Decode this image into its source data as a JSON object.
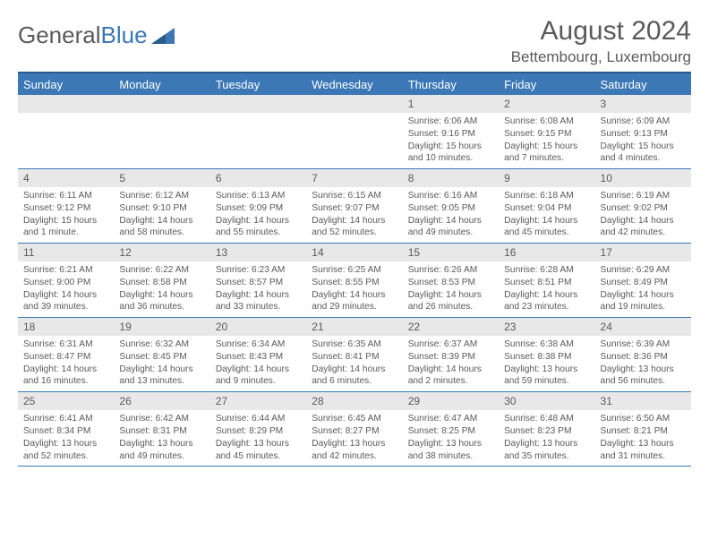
{
  "logo": {
    "text1": "General",
    "text2": "Blue"
  },
  "title": "August 2024",
  "location": "Bettembourg, Luxembourg",
  "weekdays": [
    "Sunday",
    "Monday",
    "Tuesday",
    "Wednesday",
    "Thursday",
    "Friday",
    "Saturday"
  ],
  "colors": {
    "header_bg": "#3b78b5",
    "header_border": "#2a5a8a",
    "daynum_bg": "#e8e8e8",
    "text": "#5a5a5a",
    "white": "#ffffff"
  },
  "weeks": [
    [
      {
        "n": "",
        "sr": "",
        "ss": "",
        "dl": ""
      },
      {
        "n": "",
        "sr": "",
        "ss": "",
        "dl": ""
      },
      {
        "n": "",
        "sr": "",
        "ss": "",
        "dl": ""
      },
      {
        "n": "",
        "sr": "",
        "ss": "",
        "dl": ""
      },
      {
        "n": "1",
        "sr": "Sunrise: 6:06 AM",
        "ss": "Sunset: 9:16 PM",
        "dl": "Daylight: 15 hours and 10 minutes."
      },
      {
        "n": "2",
        "sr": "Sunrise: 6:08 AM",
        "ss": "Sunset: 9:15 PM",
        "dl": "Daylight: 15 hours and 7 minutes."
      },
      {
        "n": "3",
        "sr": "Sunrise: 6:09 AM",
        "ss": "Sunset: 9:13 PM",
        "dl": "Daylight: 15 hours and 4 minutes."
      }
    ],
    [
      {
        "n": "4",
        "sr": "Sunrise: 6:11 AM",
        "ss": "Sunset: 9:12 PM",
        "dl": "Daylight: 15 hours and 1 minute."
      },
      {
        "n": "5",
        "sr": "Sunrise: 6:12 AM",
        "ss": "Sunset: 9:10 PM",
        "dl": "Daylight: 14 hours and 58 minutes."
      },
      {
        "n": "6",
        "sr": "Sunrise: 6:13 AM",
        "ss": "Sunset: 9:09 PM",
        "dl": "Daylight: 14 hours and 55 minutes."
      },
      {
        "n": "7",
        "sr": "Sunrise: 6:15 AM",
        "ss": "Sunset: 9:07 PM",
        "dl": "Daylight: 14 hours and 52 minutes."
      },
      {
        "n": "8",
        "sr": "Sunrise: 6:16 AM",
        "ss": "Sunset: 9:05 PM",
        "dl": "Daylight: 14 hours and 49 minutes."
      },
      {
        "n": "9",
        "sr": "Sunrise: 6:18 AM",
        "ss": "Sunset: 9:04 PM",
        "dl": "Daylight: 14 hours and 45 minutes."
      },
      {
        "n": "10",
        "sr": "Sunrise: 6:19 AM",
        "ss": "Sunset: 9:02 PM",
        "dl": "Daylight: 14 hours and 42 minutes."
      }
    ],
    [
      {
        "n": "11",
        "sr": "Sunrise: 6:21 AM",
        "ss": "Sunset: 9:00 PM",
        "dl": "Daylight: 14 hours and 39 minutes."
      },
      {
        "n": "12",
        "sr": "Sunrise: 6:22 AM",
        "ss": "Sunset: 8:58 PM",
        "dl": "Daylight: 14 hours and 36 minutes."
      },
      {
        "n": "13",
        "sr": "Sunrise: 6:23 AM",
        "ss": "Sunset: 8:57 PM",
        "dl": "Daylight: 14 hours and 33 minutes."
      },
      {
        "n": "14",
        "sr": "Sunrise: 6:25 AM",
        "ss": "Sunset: 8:55 PM",
        "dl": "Daylight: 14 hours and 29 minutes."
      },
      {
        "n": "15",
        "sr": "Sunrise: 6:26 AM",
        "ss": "Sunset: 8:53 PM",
        "dl": "Daylight: 14 hours and 26 minutes."
      },
      {
        "n": "16",
        "sr": "Sunrise: 6:28 AM",
        "ss": "Sunset: 8:51 PM",
        "dl": "Daylight: 14 hours and 23 minutes."
      },
      {
        "n": "17",
        "sr": "Sunrise: 6:29 AM",
        "ss": "Sunset: 8:49 PM",
        "dl": "Daylight: 14 hours and 19 minutes."
      }
    ],
    [
      {
        "n": "18",
        "sr": "Sunrise: 6:31 AM",
        "ss": "Sunset: 8:47 PM",
        "dl": "Daylight: 14 hours and 16 minutes."
      },
      {
        "n": "19",
        "sr": "Sunrise: 6:32 AM",
        "ss": "Sunset: 8:45 PM",
        "dl": "Daylight: 14 hours and 13 minutes."
      },
      {
        "n": "20",
        "sr": "Sunrise: 6:34 AM",
        "ss": "Sunset: 8:43 PM",
        "dl": "Daylight: 14 hours and 9 minutes."
      },
      {
        "n": "21",
        "sr": "Sunrise: 6:35 AM",
        "ss": "Sunset: 8:41 PM",
        "dl": "Daylight: 14 hours and 6 minutes."
      },
      {
        "n": "22",
        "sr": "Sunrise: 6:37 AM",
        "ss": "Sunset: 8:39 PM",
        "dl": "Daylight: 14 hours and 2 minutes."
      },
      {
        "n": "23",
        "sr": "Sunrise: 6:38 AM",
        "ss": "Sunset: 8:38 PM",
        "dl": "Daylight: 13 hours and 59 minutes."
      },
      {
        "n": "24",
        "sr": "Sunrise: 6:39 AM",
        "ss": "Sunset: 8:36 PM",
        "dl": "Daylight: 13 hours and 56 minutes."
      }
    ],
    [
      {
        "n": "25",
        "sr": "Sunrise: 6:41 AM",
        "ss": "Sunset: 8:34 PM",
        "dl": "Daylight: 13 hours and 52 minutes."
      },
      {
        "n": "26",
        "sr": "Sunrise: 6:42 AM",
        "ss": "Sunset: 8:31 PM",
        "dl": "Daylight: 13 hours and 49 minutes."
      },
      {
        "n": "27",
        "sr": "Sunrise: 6:44 AM",
        "ss": "Sunset: 8:29 PM",
        "dl": "Daylight: 13 hours and 45 minutes."
      },
      {
        "n": "28",
        "sr": "Sunrise: 6:45 AM",
        "ss": "Sunset: 8:27 PM",
        "dl": "Daylight: 13 hours and 42 minutes."
      },
      {
        "n": "29",
        "sr": "Sunrise: 6:47 AM",
        "ss": "Sunset: 8:25 PM",
        "dl": "Daylight: 13 hours and 38 minutes."
      },
      {
        "n": "30",
        "sr": "Sunrise: 6:48 AM",
        "ss": "Sunset: 8:23 PM",
        "dl": "Daylight: 13 hours and 35 minutes."
      },
      {
        "n": "31",
        "sr": "Sunrise: 6:50 AM",
        "ss": "Sunset: 8:21 PM",
        "dl": "Daylight: 13 hours and 31 minutes."
      }
    ]
  ]
}
